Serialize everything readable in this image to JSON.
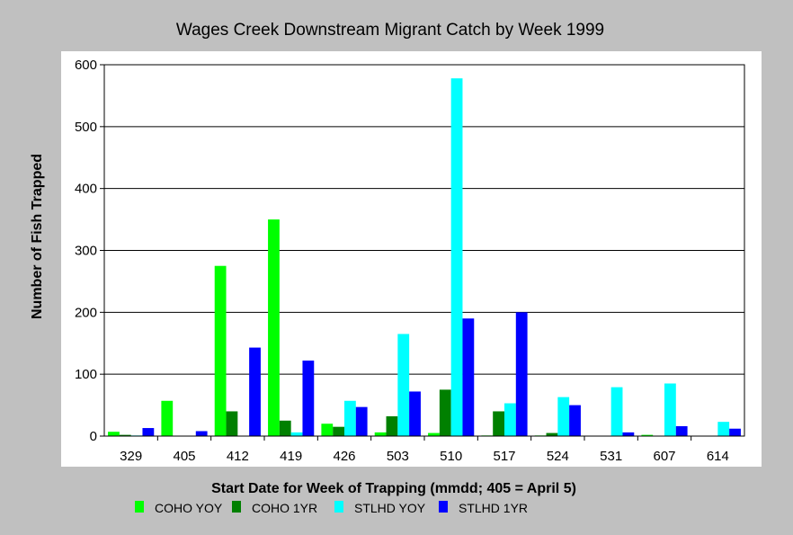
{
  "chart_data": {
    "type": "bar",
    "title": "Wages Creek Downstream Migrant Catch by Week 1999",
    "xlabel": "Start Date for Week of Trapping (mmdd; 405 = April 5)",
    "ylabel": "Number of Fish Trapped",
    "ylim": [
      0,
      600
    ],
    "yticks": [
      0,
      100,
      200,
      300,
      400,
      500,
      600
    ],
    "grid": true,
    "legend_position": "bottom",
    "categories": [
      "329",
      "405",
      "412",
      "419",
      "426",
      "503",
      "510",
      "517",
      "524",
      "531",
      "607",
      "614"
    ],
    "series": [
      {
        "name": "COHO YOY",
        "color": "#00ff00",
        "values": [
          7,
          57,
          275,
          350,
          20,
          6,
          5,
          1,
          1,
          0,
          2,
          0
        ]
      },
      {
        "name": "COHO 1YR",
        "color": "#008000",
        "values": [
          2,
          0,
          40,
          25,
          15,
          32,
          75,
          40,
          5,
          0,
          0,
          0
        ]
      },
      {
        "name": "STLHD YOY",
        "color": "#00ffff",
        "values": [
          1,
          0,
          0,
          6,
          57,
          165,
          578,
          53,
          63,
          79,
          85,
          23
        ]
      },
      {
        "name": "STLHD 1YR",
        "color": "#0000ff",
        "values": [
          13,
          8,
          143,
          122,
          47,
          72,
          190,
          200,
          50,
          6,
          16,
          12
        ]
      }
    ]
  }
}
